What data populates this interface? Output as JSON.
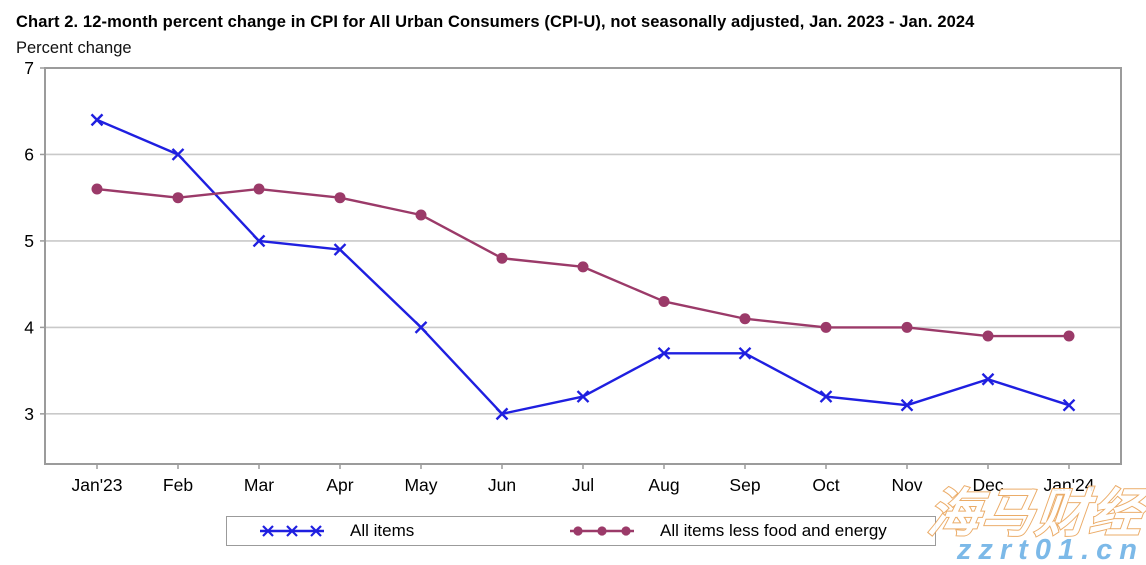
{
  "title": "Chart 2. 12-month percent change in CPI for All Urban Consumers (CPI-U), not seasonally adjusted, Jan. 2023 - Jan. 2024",
  "subtitle": "Percent change",
  "chart_data": {
    "type": "line",
    "title": "Chart 2. 12-month percent change in CPI for All Urban Consumers (CPI-U), not seasonally adjusted, Jan. 2023 - Jan. 2024",
    "ylabel": "Percent change",
    "categories": [
      "Jan'23",
      "Feb",
      "Mar",
      "Apr",
      "May",
      "Jun",
      "Jul",
      "Aug",
      "Sep",
      "Oct",
      "Nov",
      "Dec",
      "Jan'24"
    ],
    "series": [
      {
        "name": "All items",
        "marker": "x",
        "color": "#1f1fe0",
        "values": [
          6.4,
          6.0,
          5.0,
          4.9,
          4.0,
          3.0,
          3.2,
          3.7,
          3.7,
          3.2,
          3.1,
          3.4,
          3.1
        ]
      },
      {
        "name": "All items less food and energy",
        "marker": "circle",
        "color": "#9b3a69",
        "values": [
          5.6,
          5.5,
          5.6,
          5.5,
          5.3,
          4.8,
          4.7,
          4.3,
          4.1,
          4.0,
          4.0,
          3.9,
          3.9
        ]
      }
    ],
    "yticks": [
      3,
      4,
      5,
      6,
      7
    ],
    "ylim": [
      2.42,
      7
    ],
    "grid": "horizontal",
    "legend_position": "bottom",
    "gridline_color": "#c9c9c9",
    "border_color": "#9b9b9b",
    "axis_text_color": "#000000"
  },
  "legend": {
    "items": [
      {
        "label": "All items"
      },
      {
        "label": "All items less food and energy"
      }
    ]
  },
  "watermark": {
    "line1": "海马财经",
    "line2": "zzrt01.cn",
    "line1_fill": "#ffffff",
    "line1_outline": "#eaa55c",
    "line2_color": "#7cb9e8"
  }
}
